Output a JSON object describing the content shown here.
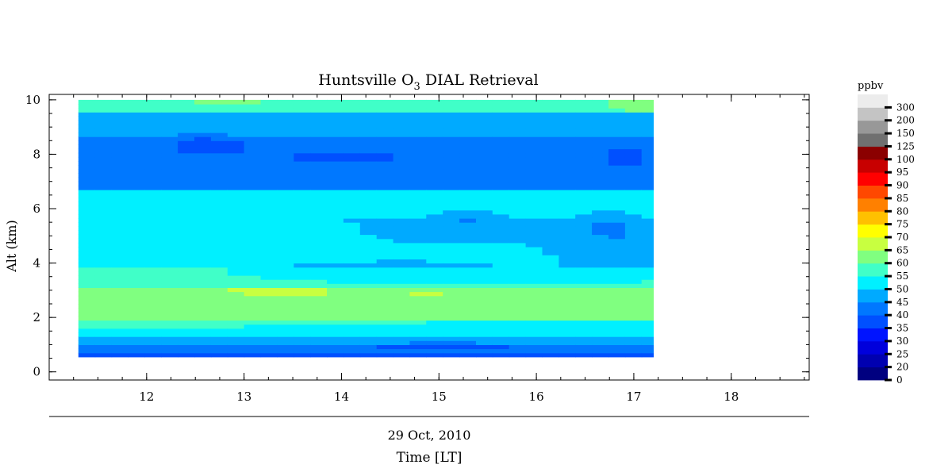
{
  "chart_data": {
    "type": "heatmap",
    "title": {
      "main": "Huntsville O",
      "sub": "3",
      "rest": " DIAL Retrieval"
    },
    "xlabel_date": "29 Oct, 2010",
    "xlabel": "Time [LT]",
    "ylabel": "Alt (km)",
    "xlim": [
      11.0,
      18.8
    ],
    "ylim": [
      -0.3,
      10.2
    ],
    "xticks": [
      12,
      13,
      14,
      15,
      16,
      17,
      18
    ],
    "yticks": [
      0,
      2,
      4,
      6,
      8,
      10
    ],
    "x_minor_step": 0.25,
    "y_minor_step": 0.5,
    "colorbar": {
      "unit": "ppbv",
      "levels": [
        "0",
        "20",
        "25",
        "30",
        "35",
        "40",
        "45",
        "50",
        "55",
        "60",
        "65",
        "70",
        "75",
        "80",
        "85",
        "90",
        "95",
        "100",
        "125",
        "150",
        "200",
        "300"
      ],
      "colors": [
        "#000080",
        "#0000b0",
        "#0000dc",
        "#0014ff",
        "#0050ff",
        "#0078ff",
        "#00aaff",
        "#00f0ff",
        "#40ffc8",
        "#80ff80",
        "#c8ff40",
        "#ffff00",
        "#ffc000",
        "#ff8000",
        "#ff4800",
        "#ff0000",
        "#c80000",
        "#8b0000",
        "#707070",
        "#989898",
        "#c4c4c4",
        "#ececec"
      ]
    },
    "data_extent": {
      "x": [
        11.3,
        17.2
      ],
      "y": [
        0.55,
        10.0
      ]
    },
    "layers": [
      {
        "y": [
          0.55,
          0.65
        ],
        "level": 35,
        "note": "bottom band"
      },
      {
        "y": [
          0.65,
          1.05
        ],
        "level": 40
      },
      {
        "y": [
          1.05,
          1.3
        ],
        "level": 45
      },
      {
        "y": [
          1.3,
          1.8
        ],
        "level": 55
      },
      {
        "y": [
          1.8,
          3.1
        ],
        "level": 60
      },
      {
        "y": [
          3.1,
          3.8
        ],
        "level": 55
      },
      {
        "y": [
          3.8,
          4.6
        ],
        "level": 50
      },
      {
        "y": [
          4.6,
          5.6
        ],
        "level": 50
      },
      {
        "y": [
          5.6,
          6.6
        ],
        "level": 55
      },
      {
        "y": [
          6.6,
          8.5
        ],
        "level": 45
      },
      {
        "y": [
          8.5,
          9.6
        ],
        "level": 50
      },
      {
        "y": [
          9.6,
          10.0
        ],
        "level": 60
      }
    ]
  }
}
